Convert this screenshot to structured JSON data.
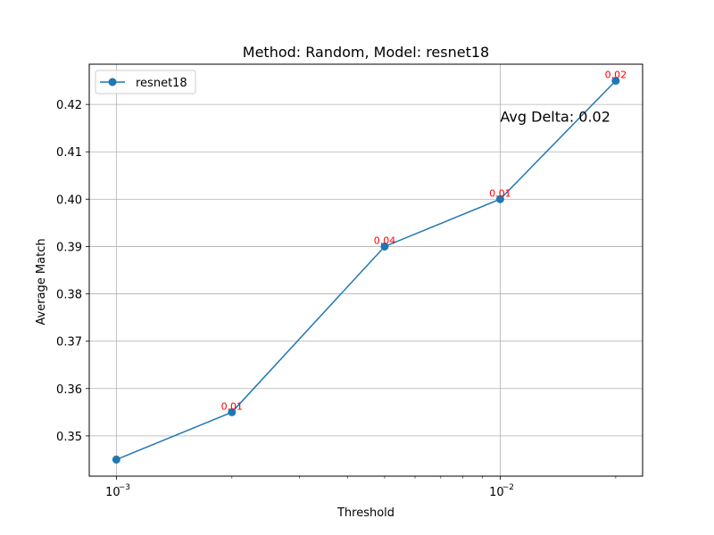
{
  "chart_data": {
    "type": "line",
    "title": "Method: Random, Model: resnet18",
    "xlabel": "Threshold",
    "ylabel": "Average Match",
    "x_scale": "log",
    "xlim": [
      0.00085,
      0.0235
    ],
    "ylim": [
      0.3415,
      0.4285
    ],
    "grid": true,
    "legend_placement": "upper-left",
    "x_ticks": [
      {
        "value": 0.001,
        "base": "10",
        "exp": "−3"
      },
      {
        "value": 0.01,
        "base": "10",
        "exp": "−2"
      }
    ],
    "x_minor_ticks": [
      0.002,
      0.003,
      0.004,
      0.005,
      0.006,
      0.007,
      0.008,
      0.009,
      0.02
    ],
    "y_ticks": [
      {
        "value": 0.35,
        "label": "0.35"
      },
      {
        "value": 0.36,
        "label": "0.36"
      },
      {
        "value": 0.37,
        "label": "0.37"
      },
      {
        "value": 0.38,
        "label": "0.38"
      },
      {
        "value": 0.39,
        "label": "0.39"
      },
      {
        "value": 0.4,
        "label": "0.40"
      },
      {
        "value": 0.41,
        "label": "0.41"
      },
      {
        "value": 0.42,
        "label": "0.42"
      }
    ],
    "series": [
      {
        "name": "resnet18",
        "color": "#1f77b4",
        "x": [
          0.001,
          0.002,
          0.005,
          0.01,
          0.02
        ],
        "y": [
          0.345,
          0.355,
          0.39,
          0.4,
          0.425
        ]
      }
    ],
    "point_labels": [
      {
        "x": 0.002,
        "y": 0.355,
        "text": "0.01"
      },
      {
        "x": 0.005,
        "y": 0.39,
        "text": "0.04"
      },
      {
        "x": 0.01,
        "y": 0.4,
        "text": "0.01"
      },
      {
        "x": 0.02,
        "y": 0.425,
        "text": "0.02"
      }
    ],
    "point_label_color": "#ff0000",
    "annotation": {
      "text": "Avg Delta: 0.02",
      "x": 0.01,
      "y": 0.4175
    }
  }
}
